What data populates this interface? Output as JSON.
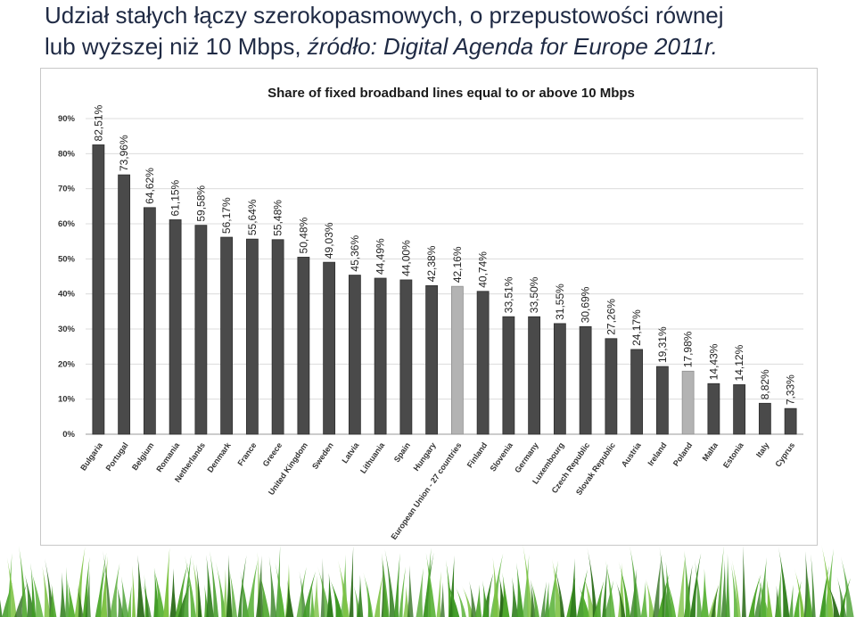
{
  "slide": {
    "title_line1": "Udział stałych łączy szerokopasmowych, o przepustowości równej",
    "title_line2_a": "lub wyższej niż 10 Mbps, ",
    "title_line2_b": "źródło: Digital Agenda for Europe 2011r."
  },
  "colors": {
    "bar": "#4a4a4a",
    "highlight_bar": "#b3b3b3",
    "grid": "#dcdcdc",
    "title_text": "#1f2a44",
    "grass_dark": "#2f7d1c",
    "grass_light": "#7cc242"
  },
  "chart_data": {
    "type": "bar",
    "title": "Share of fixed broadband lines equal to or above 10 Mbps",
    "xlabel": "",
    "ylabel": "",
    "ylim": [
      0,
      90
    ],
    "yticks": [
      0,
      10,
      20,
      30,
      40,
      50,
      60,
      70,
      80,
      90
    ],
    "ytick_labels": [
      "0%",
      "10%",
      "20%",
      "30%",
      "40%",
      "50%",
      "60%",
      "70%",
      "80%",
      "90%"
    ],
    "grid": true,
    "categories": [
      "Bulgaria",
      "Portugal",
      "Belgium",
      "Romania",
      "Netherlands",
      "Denmark",
      "France",
      "Greece",
      "United Kingdom",
      "Sweden",
      "Latvia",
      "Lithuania",
      "Spain",
      "Hungary",
      "European Union - 27 countries",
      "Finland",
      "Slovenia",
      "Germany",
      "Luxembourg",
      "Czech Republic",
      "Slovak Republic",
      "Austria",
      "Ireland",
      "Poland",
      "Malta",
      "Estonia",
      "Italy",
      "Cyprus"
    ],
    "values": [
      82.51,
      73.96,
      64.62,
      61.15,
      59.58,
      56.17,
      55.64,
      55.48,
      50.48,
      49.03,
      45.36,
      44.49,
      44.0,
      42.38,
      42.16,
      40.74,
      33.51,
      33.5,
      31.55,
      30.69,
      27.26,
      24.17,
      19.31,
      17.98,
      14.43,
      14.12,
      8.82,
      7.33
    ],
    "data_labels": [
      "82,51%",
      "73,96%",
      "64,62%",
      "61,15%",
      "59,58%",
      "56,17%",
      "55,64%",
      "55,48%",
      "50,48%",
      "49,03%",
      "45,36%",
      "44,49%",
      "44,00%",
      "42,38%",
      "42,16%",
      "40,74%",
      "33,51%",
      "33,50%",
      "31,55%",
      "30,69%",
      "27,26%",
      "24,17%",
      "19,31%",
      "17,98%",
      "14,43%",
      "14,12%",
      "8,82%",
      "7,33%"
    ],
    "highlighted": [
      "European Union - 27 countries",
      "Poland"
    ]
  }
}
